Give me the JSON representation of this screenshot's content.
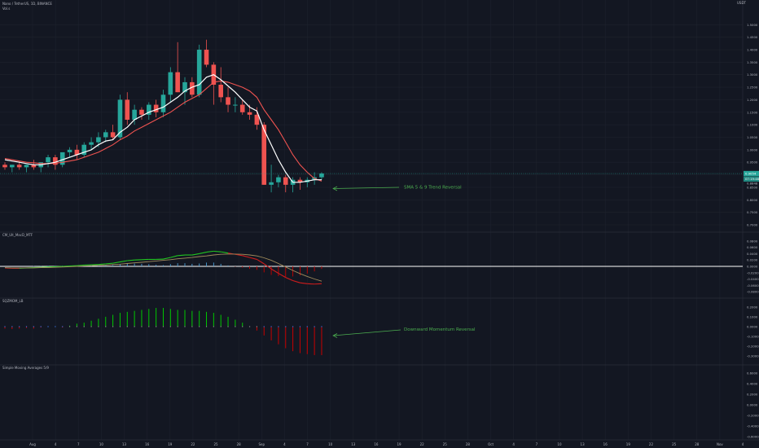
{
  "header": {
    "symbol_line": "Nano / TetherUS, 1D, BINANCE",
    "sub_line": "Vol.s",
    "currency": "USDT"
  },
  "panes": {
    "macd_title": "CM_Ult_MacD_MTF",
    "sqz_title": "SQZMOM_LB",
    "sma_title": "Simple Moving Averages 5/9"
  },
  "annotations": {
    "sma_reversal": "SMA 5 & 9 Trend Reversal",
    "momentum_reversal": "Downward Momentum Reversal"
  },
  "colors": {
    "background": "#131722",
    "up": "#26a69a",
    "down": "#ef5350",
    "sma_fast": "#ffffff",
    "sma_slow": "#ef5350",
    "macd_line": "#21c521",
    "macd_signal": "#a08c5c",
    "hist_up": "#00c800",
    "hist_down": "#c80000",
    "annotation": "#4caf50"
  },
  "chart_data": [
    {
      "type": "candlestick",
      "name": "price",
      "ylim": [
        0.7,
        1.54
      ],
      "y_ticks": [
        "1.5000",
        "1.4500",
        "1.4000",
        "1.3500",
        "1.3000",
        "1.2500",
        "1.2000",
        "1.1500",
        "1.1000",
        "1.0500",
        "1.0000",
        "0.9500",
        "0.9000",
        "0.8500",
        "0.8000",
        "0.7500",
        "0.7000"
      ],
      "current_price": "0.9054",
      "secondary_label": "07:19:48",
      "third_label": "0.8848",
      "ohlc": [
        [
          0.94,
          0.95,
          0.92,
          0.93
        ],
        [
          0.93,
          0.94,
          0.91,
          0.94
        ],
        [
          0.94,
          0.95,
          0.92,
          0.93
        ],
        [
          0.93,
          0.94,
          0.91,
          0.94
        ],
        [
          0.94,
          0.96,
          0.92,
          0.93
        ],
        [
          0.93,
          0.95,
          0.91,
          0.95
        ],
        [
          0.95,
          0.98,
          0.93,
          0.97
        ],
        [
          0.97,
          0.98,
          0.92,
          0.94
        ],
        [
          0.94,
          0.99,
          0.93,
          0.99
        ],
        [
          0.99,
          1.01,
          0.97,
          1.0
        ],
        [
          1.0,
          1.02,
          0.96,
          0.98
        ],
        [
          0.98,
          1.03,
          0.97,
          1.02
        ],
        [
          1.02,
          1.05,
          1.0,
          1.03
        ],
        [
          1.03,
          1.07,
          1.01,
          1.05
        ],
        [
          1.05,
          1.08,
          1.03,
          1.07
        ],
        [
          1.07,
          1.1,
          1.04,
          1.05
        ],
        [
          1.05,
          1.22,
          1.04,
          1.2
        ],
        [
          1.2,
          1.23,
          1.1,
          1.12
        ],
        [
          1.12,
          1.18,
          1.1,
          1.16
        ],
        [
          1.16,
          1.17,
          1.12,
          1.14
        ],
        [
          1.14,
          1.19,
          1.12,
          1.18
        ],
        [
          1.18,
          1.2,
          1.13,
          1.15
        ],
        [
          1.15,
          1.24,
          1.13,
          1.22
        ],
        [
          1.22,
          1.33,
          1.19,
          1.31
        ],
        [
          1.31,
          1.43,
          1.23,
          1.23
        ],
        [
          1.23,
          1.29,
          1.18,
          1.27
        ],
        [
          1.27,
          1.29,
          1.21,
          1.22
        ],
        [
          1.22,
          1.42,
          1.21,
          1.4
        ],
        [
          1.4,
          1.44,
          1.33,
          1.34
        ],
        [
          1.34,
          1.35,
          1.18,
          1.26
        ],
        [
          1.26,
          1.33,
          1.19,
          1.21
        ],
        [
          1.21,
          1.25,
          1.15,
          1.18
        ],
        [
          1.18,
          1.21,
          1.15,
          1.18
        ],
        [
          1.18,
          1.2,
          1.14,
          1.15
        ],
        [
          1.15,
          1.18,
          1.12,
          1.14
        ],
        [
          1.14,
          1.17,
          1.08,
          1.1
        ],
        [
          1.1,
          1.11,
          0.86,
          0.86
        ],
        [
          0.86,
          0.94,
          0.83,
          0.87
        ],
        [
          0.87,
          0.9,
          0.85,
          0.89
        ],
        [
          0.89,
          0.9,
          0.83,
          0.86
        ],
        [
          0.86,
          0.89,
          0.83,
          0.88
        ],
        [
          0.88,
          0.89,
          0.84,
          0.87
        ],
        [
          0.87,
          0.89,
          0.85,
          0.88
        ],
        [
          0.88,
          0.91,
          0.86,
          0.89
        ],
        [
          0.89,
          0.91,
          0.88,
          0.905
        ]
      ],
      "sma5": [
        0.96,
        0.955,
        0.95,
        0.945,
        0.94,
        0.94,
        0.945,
        0.95,
        0.96,
        0.97,
        0.98,
        0.99,
        1.0,
        1.02,
        1.035,
        1.04,
        1.07,
        1.09,
        1.12,
        1.135,
        1.15,
        1.16,
        1.17,
        1.19,
        1.21,
        1.235,
        1.25,
        1.26,
        1.29,
        1.3,
        1.28,
        1.255,
        1.23,
        1.2,
        1.17,
        1.155,
        1.08,
        1.02,
        0.96,
        0.91,
        0.87,
        0.87,
        0.875,
        0.88,
        0.88
      ],
      "sma9": [
        0.965,
        0.96,
        0.955,
        0.95,
        0.948,
        0.945,
        0.945,
        0.946,
        0.95,
        0.955,
        0.96,
        0.97,
        0.98,
        0.99,
        1.005,
        1.02,
        1.04,
        1.055,
        1.075,
        1.09,
        1.105,
        1.12,
        1.135,
        1.15,
        1.17,
        1.19,
        1.205,
        1.22,
        1.245,
        1.27,
        1.275,
        1.27,
        1.26,
        1.25,
        1.235,
        1.21,
        1.16,
        1.12,
        1.08,
        1.03,
        0.98,
        0.94,
        0.91,
        0.885,
        0.875
      ]
    },
    {
      "type": "line",
      "name": "macd",
      "ylim": [
        -0.085,
        0.085
      ],
      "y_ticks": [
        "0.0800",
        "0.0600",
        "0.0400",
        "0.0200",
        "0.0000",
        "-0.0200",
        "-0.0400",
        "-0.0600",
        "-0.0800"
      ],
      "series": [
        {
          "values": [
            -0.005,
            -0.006,
            -0.006,
            -0.005,
            -0.004,
            -0.003,
            -0.002,
            -0.001,
            0.0,
            0.001,
            0.002,
            0.004,
            0.005,
            0.006,
            0.008,
            0.01,
            0.014,
            0.018,
            0.02,
            0.021,
            0.022,
            0.022,
            0.023,
            0.028,
            0.034,
            0.036,
            0.036,
            0.04,
            0.045,
            0.048,
            0.046,
            0.042,
            0.038,
            0.034,
            0.028,
            0.022,
            0.008,
            -0.008,
            -0.022,
            -0.035,
            -0.045,
            -0.052,
            -0.055,
            -0.056,
            -0.055
          ]
        },
        {
          "values": [
            -0.004,
            -0.005,
            -0.005,
            -0.005,
            -0.005,
            -0.004,
            -0.004,
            -0.003,
            -0.002,
            -0.001,
            0.0,
            0.001,
            0.002,
            0.003,
            0.004,
            0.006,
            0.007,
            0.009,
            0.011,
            0.013,
            0.015,
            0.017,
            0.019,
            0.021,
            0.024,
            0.026,
            0.028,
            0.031,
            0.033,
            0.036,
            0.038,
            0.039,
            0.039,
            0.038,
            0.036,
            0.033,
            0.027,
            0.019,
            0.009,
            -0.002,
            -0.013,
            -0.023,
            -0.032,
            -0.04,
            -0.047
          ]
        }
      ],
      "histogram": [
        0.0,
        0.0,
        0.0,
        0.0,
        0.001,
        0.001,
        0.002,
        0.002,
        0.002,
        0.002,
        0.002,
        0.003,
        0.003,
        0.003,
        0.004,
        0.004,
        0.007,
        0.009,
        0.009,
        0.008,
        0.007,
        0.005,
        0.004,
        0.007,
        0.01,
        0.01,
        0.008,
        0.009,
        0.012,
        0.012,
        0.008,
        0.003,
        -0.001,
        -0.004,
        -0.008,
        -0.011,
        -0.019,
        -0.027,
        -0.031,
        -0.033,
        -0.032,
        -0.029,
        -0.023,
        -0.016,
        -0.008
      ]
    },
    {
      "type": "bar",
      "name": "squeeze_momentum",
      "ylim": [
        -0.34,
        0.24
      ],
      "y_ticks": [
        "0.2000",
        "0.1000",
        "0.0000",
        "-0.1000",
        "-0.2000",
        "-0.3000"
      ],
      "values": [
        -0.02,
        -0.025,
        -0.02,
        -0.015,
        -0.02,
        -0.01,
        0.0,
        0.0,
        -0.01,
        0.01,
        0.03,
        0.04,
        0.06,
        0.08,
        0.1,
        0.12,
        0.14,
        0.15,
        0.16,
        0.17,
        0.18,
        0.19,
        0.19,
        0.18,
        0.17,
        0.17,
        0.16,
        0.16,
        0.15,
        0.14,
        0.12,
        0.1,
        0.07,
        0.04,
        0.0,
        -0.04,
        -0.09,
        -0.14,
        -0.18,
        -0.22,
        -0.25,
        -0.27,
        -0.28,
        -0.29,
        -0.29
      ]
    },
    {
      "type": "line",
      "name": "sma_pane",
      "y_ticks": [
        "0.6000",
        "0.4000",
        "0.2000",
        "0.0000",
        "-0.2000",
        "-0.4000",
        "-0.6000"
      ]
    }
  ],
  "time_axis": [
    "Aug",
    "4",
    "7",
    "10",
    "13",
    "16",
    "19",
    "22",
    "25",
    "28",
    "Sep",
    "4",
    "7",
    "10",
    "13",
    "16",
    "19",
    "22",
    "25",
    "28",
    "Oct",
    "4",
    "7",
    "10",
    "13",
    "16",
    "19",
    "22",
    "25",
    "28",
    "Nov",
    "4"
  ]
}
